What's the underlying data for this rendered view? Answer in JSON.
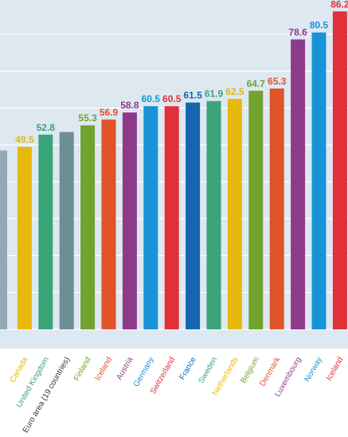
{
  "chart_data": {
    "type": "bar",
    "title": "",
    "xlabel": "",
    "ylabel": "",
    "ylim": [
      0,
      90
    ],
    "grid": true,
    "categories": [
      "",
      "Canada",
      "United Kingdom",
      "Euro area (19 countries)",
      "Finland",
      "Iceland",
      "Austria",
      "Germany",
      "Switzerland",
      "France",
      "Sweden",
      "Netherlands",
      "Belgium",
      "Denmark",
      "Luxembourg",
      "Norway",
      "Iceland"
    ],
    "values": [
      48.5,
      49.5,
      52.8,
      53.5,
      55.3,
      56.9,
      58.8,
      60.5,
      60.5,
      61.5,
      61.9,
      62.5,
      64.7,
      65.3,
      78.6,
      80.5,
      86.2
    ],
    "data_labels": [
      "",
      "49.5",
      "52.8",
      "",
      "55.3",
      "56.9",
      "58.8",
      "60.5",
      "60.5",
      "61.5",
      "61.9",
      "62.5",
      "64.7",
      "65.3",
      "78.6",
      "80.5",
      "86.2"
    ],
    "colors": [
      "#93a8b4",
      "#e6b90c",
      "#3aa37a",
      "#6c8f95",
      "#70a32f",
      "#e0542a",
      "#8e3a8a",
      "#1993d8",
      "#e0303a",
      "#1466ae",
      "#3aa37a",
      "#e6b90c",
      "#70a32f",
      "#e0542a",
      "#8e3a8a",
      "#1993d8",
      "#e0303a"
    ],
    "label_colors": [
      "#93a8b4",
      "#e6b90c",
      "#3aa37a",
      "#333333",
      "#70a32f",
      "#e0542a",
      "#8e3a8a",
      "#1993d8",
      "#e0303a",
      "#1466ae",
      "#3aa37a",
      "#e6b90c",
      "#70a32f",
      "#e0542a",
      "#8e3a8a",
      "#1993d8",
      "#e0303a"
    ]
  }
}
